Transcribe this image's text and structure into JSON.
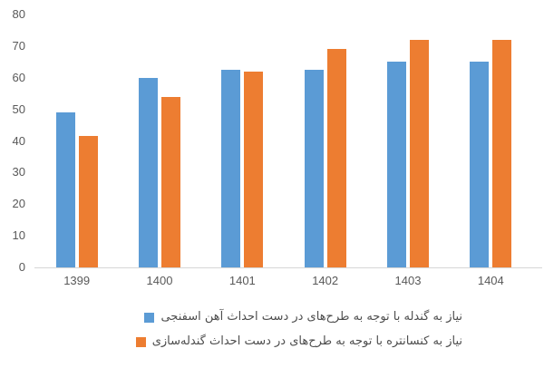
{
  "chart_data": {
    "type": "bar",
    "title": "",
    "xlabel": "",
    "ylabel": "",
    "categories": [
      "1399",
      "1400",
      "1401",
      "1402",
      "1403",
      "1404"
    ],
    "series": [
      {
        "id": "pellet-need",
        "name": "نیاز به گندله با توجه به طرح‌های در دست احداث آهن اسفنجی",
        "color": "#5B9BD5",
        "values": [
          49,
          60,
          62.5,
          62.5,
          65,
          65
        ]
      },
      {
        "id": "concentrate-need",
        "name": "نیاز به کنسانتره با توجه به طرح‌های در دست احداث گندله‌سازی",
        "color": "#ED7D31",
        "values": [
          41.5,
          54,
          62,
          69,
          72,
          72
        ]
      }
    ],
    "ylim": [
      0,
      80
    ],
    "yticks": [
      0,
      10,
      20,
      30,
      40,
      50,
      60,
      70,
      80
    ],
    "grid": false,
    "legend_position": "bottom",
    "axis_line_color": "#d6d6d6",
    "tick_label_color": "#595959"
  }
}
